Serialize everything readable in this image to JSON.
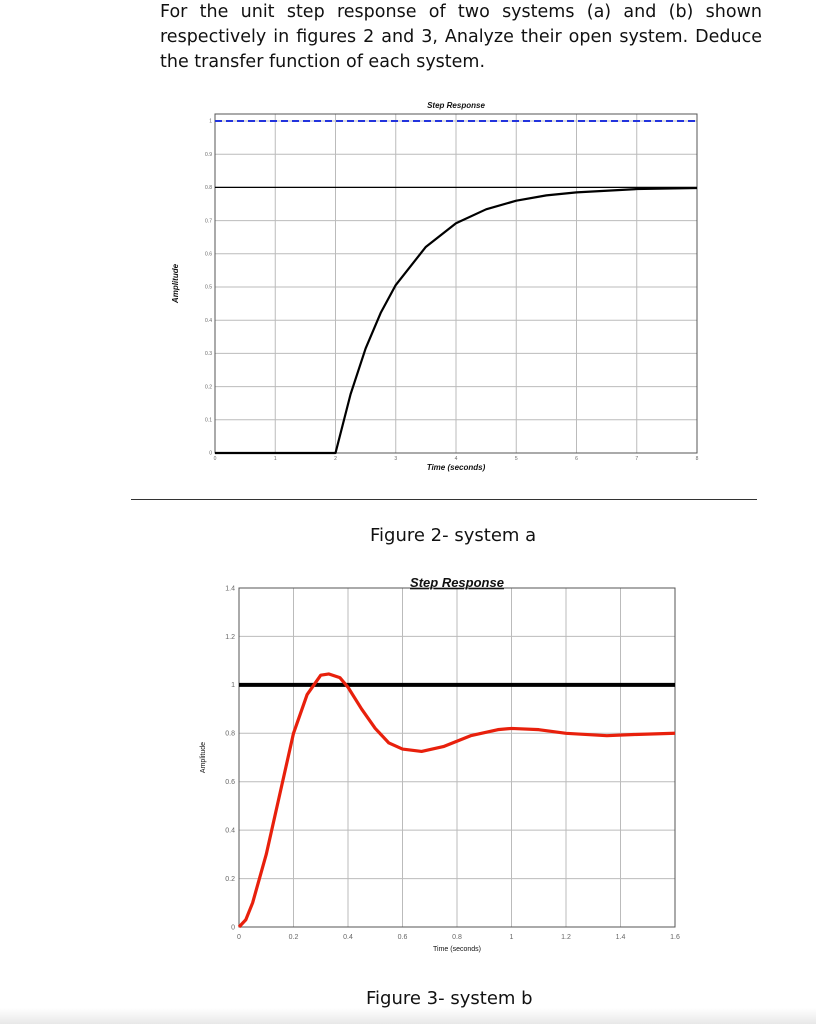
{
  "question": "For the unit step response of two systems (a) and (b) shown respectively in figures 2 and 3, Analyze their open system. Deduce the transfer function of each system.",
  "chart_data": [
    {
      "type": "line",
      "title": "Step Response",
      "xlabel": "Time (seconds)",
      "ylabel": "Amplitude",
      "xlim": [
        0,
        8
      ],
      "ylim": [
        0,
        1
      ],
      "grid": true,
      "x_ticks": [
        "0",
        "1",
        "2",
        "3",
        "4",
        "5",
        "6",
        "7",
        "8"
      ],
      "y_ticks": [
        "0",
        "0.1",
        "0.2",
        "0.3",
        "0.4",
        "0.5",
        "0.6",
        "0.7",
        "0.8",
        "0.9",
        "1"
      ],
      "series": [
        {
          "color": "#000000",
          "x": [
            0,
            2,
            2.25,
            2.5,
            2.75,
            3,
            3.5,
            4,
            4.5,
            5,
            5.5,
            6,
            7,
            8
          ],
          "y": [
            0,
            0,
            0.177,
            0.315,
            0.422,
            0.506,
            0.621,
            0.692,
            0.734,
            0.76,
            0.776,
            0.785,
            0.795,
            0.798
          ]
        }
      ],
      "reference_lines": [
        {
          "y": 1,
          "color": "#2233dd",
          "style": "dashed"
        },
        {
          "y": 0.8,
          "color": "#000000",
          "style": "solid-thin"
        }
      ],
      "caption": "Figure 2- system a"
    },
    {
      "type": "line",
      "title": "Step Response",
      "xlabel": "Time (seconds)",
      "ylabel": "Amplitude",
      "xlim": [
        0,
        1.6
      ],
      "ylim": [
        0,
        1.4
      ],
      "grid": true,
      "x_ticks": [
        "0",
        "0.2",
        "0.4",
        "0.6",
        "0.8",
        "1",
        "1.2",
        "1.4",
        "1.6"
      ],
      "y_ticks": [
        "0",
        "0.2",
        "0.4",
        "0.6",
        "0.8",
        "1",
        "1.2",
        "1.4"
      ],
      "series": [
        {
          "color": "#e8200c",
          "x": [
            0,
            0.025,
            0.05,
            0.1,
            0.15,
            0.2,
            0.25,
            0.3,
            0.33,
            0.37,
            0.4,
            0.45,
            0.5,
            0.55,
            0.6,
            0.67,
            0.75,
            0.85,
            0.95,
            1.0,
            1.1,
            1.2,
            1.35,
            1.45,
            1.6
          ],
          "y": [
            0,
            0.03,
            0.1,
            0.3,
            0.55,
            0.8,
            0.96,
            1.04,
            1.045,
            1.03,
            0.99,
            0.9,
            0.82,
            0.76,
            0.735,
            0.725,
            0.745,
            0.79,
            0.815,
            0.82,
            0.815,
            0.8,
            0.79,
            0.795,
            0.8
          ]
        }
      ],
      "reference_lines": [
        {
          "y": 1,
          "color": "#000000",
          "style": "solid-thick"
        }
      ],
      "caption": "Figure 3- system b"
    }
  ]
}
